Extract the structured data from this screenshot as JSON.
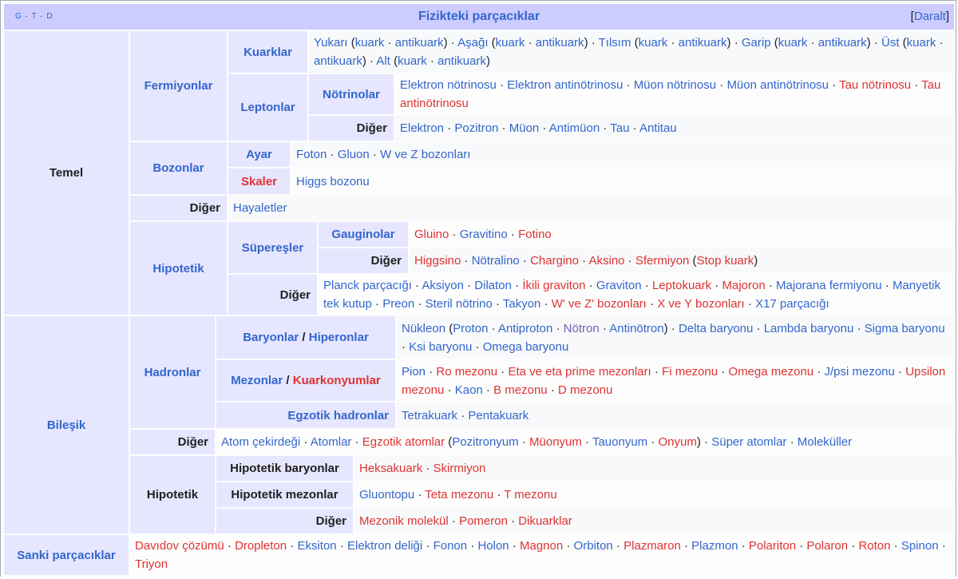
{
  "header": {
    "vtd": [
      "G",
      "T",
      "D"
    ],
    "title": "Fizikteki parçacıklar",
    "collapse_open": "[",
    "collapse_label": "Daralt",
    "collapse_close": "]"
  },
  "groups": {
    "temel": "Temel",
    "fermiyonlar": "Fermiyonlar",
    "kuarklar": "Kuarklar",
    "leptonlar": "Leptonlar",
    "notrinolar": "Nötrinolar",
    "diger_lepton": "Diğer",
    "bozonlar": "Bozonlar",
    "ayar": "Ayar",
    "skaler": "Skaler",
    "diger_temel": "Diğer",
    "hipotetik_temel": "Hipotetik",
    "superesler": "Süpereşler",
    "gauginolar": "Gauginolar",
    "diger_super": "Diğer",
    "diger_hip": "Diğer",
    "bilesik": "Bileşik",
    "hadronlar": "Hadronlar",
    "baryonlar": "Baryonlar",
    "slash": " / ",
    "hiperonlar": "Hiperonlar",
    "mezonlar": "Mezonlar",
    "kuarkonyumlar": "Kuarkonyumlar",
    "egzotik_hadronlar": "Egzotik hadronlar",
    "diger_bilesik": "Diğer",
    "hipotetik_bilesik": "Hipotetik",
    "hip_baryonlar": "Hipotetik baryonlar",
    "hip_mezonlar": "Hipotetik mezonlar",
    "diger_hip_bilesik": "Diğer",
    "sanki": "Sanki parçacıklar"
  },
  "lists": {
    "kuarklar": [
      {
        "t": "Yukarı",
        "c": "b"
      },
      {
        "t": " (",
        "c": "t"
      },
      {
        "t": "kuark",
        "c": "b"
      },
      {
        "t": " · ",
        "c": "t"
      },
      {
        "t": "antikuark",
        "c": "b"
      },
      {
        "t": ")",
        "c": "t"
      },
      {
        "t": " · ",
        "c": "t"
      },
      {
        "t": "Aşağı",
        "c": "b"
      },
      {
        "t": " (",
        "c": "t"
      },
      {
        "t": "kuark",
        "c": "b"
      },
      {
        "t": " · ",
        "c": "t"
      },
      {
        "t": "antikuark",
        "c": "b"
      },
      {
        "t": ")",
        "c": "t"
      },
      {
        "t": " · ",
        "c": "t"
      },
      {
        "t": "Tılsım",
        "c": "b"
      },
      {
        "t": " (",
        "c": "t"
      },
      {
        "t": "kuark",
        "c": "b"
      },
      {
        "t": " · ",
        "c": "t"
      },
      {
        "t": "antikuark",
        "c": "b"
      },
      {
        "t": ")",
        "c": "t"
      },
      {
        "t": " · ",
        "c": "t"
      },
      {
        "t": "Garip",
        "c": "b"
      },
      {
        "t": " (",
        "c": "t"
      },
      {
        "t": "kuark",
        "c": "b"
      },
      {
        "t": " · ",
        "c": "t"
      },
      {
        "t": "antikuark",
        "c": "b"
      },
      {
        "t": ")",
        "c": "t"
      },
      {
        "t": " · ",
        "c": "t"
      },
      {
        "t": "Üst",
        "c": "b"
      },
      {
        "t": " (",
        "c": "t"
      },
      {
        "t": "kuark",
        "c": "b"
      },
      {
        "t": " · ",
        "c": "t"
      },
      {
        "t": "antikuark",
        "c": "b"
      },
      {
        "t": ")",
        "c": "t"
      },
      {
        "t": " · ",
        "c": "t"
      },
      {
        "t": "Alt",
        "c": "b"
      },
      {
        "t": " (",
        "c": "t"
      },
      {
        "t": "kuark",
        "c": "b"
      },
      {
        "t": " · ",
        "c": "t"
      },
      {
        "t": "antikuark",
        "c": "b"
      },
      {
        "t": ")",
        "c": "t"
      }
    ],
    "notrinolar": [
      {
        "t": "Elektron nötrinosu",
        "c": "b"
      },
      {
        "t": " · ",
        "c": "t"
      },
      {
        "t": "Elektron antinötrinosu",
        "c": "b"
      },
      {
        "t": " · ",
        "c": "t"
      },
      {
        "t": "Müon nötrinosu",
        "c": "b"
      },
      {
        "t": " · ",
        "c": "t"
      },
      {
        "t": "Müon antinötrinosu",
        "c": "b"
      },
      {
        "t": " · ",
        "c": "t"
      },
      {
        "t": "Tau nötrinosu",
        "c": "r"
      },
      {
        "t": " · ",
        "c": "t"
      },
      {
        "t": "Tau antinötrinosu",
        "c": "r"
      }
    ],
    "diger_lepton": [
      {
        "t": "Elektron",
        "c": "b"
      },
      {
        "t": " · ",
        "c": "t"
      },
      {
        "t": "Pozitron",
        "c": "b"
      },
      {
        "t": " · ",
        "c": "t"
      },
      {
        "t": "Müon",
        "c": "b"
      },
      {
        "t": " · ",
        "c": "t"
      },
      {
        "t": "Antimüon",
        "c": "b"
      },
      {
        "t": " · ",
        "c": "t"
      },
      {
        "t": "Tau",
        "c": "b"
      },
      {
        "t": " · ",
        "c": "t"
      },
      {
        "t": "Antitau",
        "c": "b"
      }
    ],
    "ayar": [
      {
        "t": "Foton",
        "c": "b"
      },
      {
        "t": " · ",
        "c": "t"
      },
      {
        "t": "Gluon",
        "c": "b"
      },
      {
        "t": " · ",
        "c": "t"
      },
      {
        "t": "W ve Z bozonları",
        "c": "b"
      }
    ],
    "skaler": [
      {
        "t": "Higgs bozonu",
        "c": "b"
      }
    ],
    "diger_temel": [
      {
        "t": "Hayaletler",
        "c": "b"
      }
    ],
    "gauginolar": [
      {
        "t": "Gluino",
        "c": "r"
      },
      {
        "t": " · ",
        "c": "t"
      },
      {
        "t": "Gravitino",
        "c": "b"
      },
      {
        "t": " · ",
        "c": "t"
      },
      {
        "t": "Fotino",
        "c": "r"
      }
    ],
    "diger_super": [
      {
        "t": "Higgsino",
        "c": "r"
      },
      {
        "t": " · ",
        "c": "t"
      },
      {
        "t": "Nötralino",
        "c": "b"
      },
      {
        "t": " · ",
        "c": "t"
      },
      {
        "t": "Chargino",
        "c": "r"
      },
      {
        "t": " · ",
        "c": "t"
      },
      {
        "t": "Aksino",
        "c": "r"
      },
      {
        "t": " · ",
        "c": "t"
      },
      {
        "t": "Sfermiyon",
        "c": "r"
      },
      {
        "t": " (",
        "c": "t"
      },
      {
        "t": "Stop kuark",
        "c": "r"
      },
      {
        "t": ")",
        "c": "t"
      }
    ],
    "diger_hip": [
      {
        "t": "Planck parçacığı",
        "c": "b"
      },
      {
        "t": " · ",
        "c": "t"
      },
      {
        "t": "Aksiyon",
        "c": "b"
      },
      {
        "t": " · ",
        "c": "t"
      },
      {
        "t": "Dilaton",
        "c": "b"
      },
      {
        "t": " · ",
        "c": "t"
      },
      {
        "t": "İkili graviton",
        "c": "r"
      },
      {
        "t": " · ",
        "c": "t"
      },
      {
        "t": "Graviton",
        "c": "b"
      },
      {
        "t": " · ",
        "c": "t"
      },
      {
        "t": "Leptokuark",
        "c": "r"
      },
      {
        "t": " · ",
        "c": "t"
      },
      {
        "t": "Majoron",
        "c": "r"
      },
      {
        "t": " · ",
        "c": "t"
      },
      {
        "t": "Majorana fermiyonu",
        "c": "b"
      },
      {
        "t": " · ",
        "c": "t"
      },
      {
        "t": "Manyetik tek kutup",
        "c": "b"
      },
      {
        "t": " · ",
        "c": "t"
      },
      {
        "t": "Preon",
        "c": "b"
      },
      {
        "t": " · ",
        "c": "t"
      },
      {
        "t": "Steril nötrino",
        "c": "b"
      },
      {
        "t": " · ",
        "c": "t"
      },
      {
        "t": "Takyon",
        "c": "b"
      },
      {
        "t": " · ",
        "c": "t"
      },
      {
        "t": "W' ve Z' bozonları",
        "c": "r"
      },
      {
        "t": " · ",
        "c": "t"
      },
      {
        "t": "X ve Y bozonları",
        "c": "r"
      },
      {
        "t": " · ",
        "c": "t"
      },
      {
        "t": "X17 parçacığı",
        "c": "b"
      }
    ],
    "baryonlar": [
      {
        "t": "Nükleon",
        "c": "b"
      },
      {
        "t": " (",
        "c": "t"
      },
      {
        "t": "Proton",
        "c": "b"
      },
      {
        "t": " · ",
        "c": "t"
      },
      {
        "t": "Antiproton",
        "c": "b"
      },
      {
        "t": " · ",
        "c": "t"
      },
      {
        "t": "Nötron",
        "c": "v"
      },
      {
        "t": " · ",
        "c": "t"
      },
      {
        "t": "Antinötron",
        "c": "b"
      },
      {
        "t": ")",
        "c": "t"
      },
      {
        "t": " · ",
        "c": "t"
      },
      {
        "t": "Delta baryonu",
        "c": "b"
      },
      {
        "t": " · ",
        "c": "t"
      },
      {
        "t": "Lambda baryonu",
        "c": "b"
      },
      {
        "t": " · ",
        "c": "t"
      },
      {
        "t": "Sigma baryonu",
        "c": "b"
      },
      {
        "t": " · ",
        "c": "t"
      },
      {
        "t": "Ksi baryonu",
        "c": "b"
      },
      {
        "t": " · ",
        "c": "t"
      },
      {
        "t": "Omega baryonu",
        "c": "b"
      }
    ],
    "mezonlar": [
      {
        "t": "Pion",
        "c": "b"
      },
      {
        "t": " · ",
        "c": "t"
      },
      {
        "t": "Ro mezonu",
        "c": "r"
      },
      {
        "t": " · ",
        "c": "t"
      },
      {
        "t": "Eta ve eta prime mezonları",
        "c": "r"
      },
      {
        "t": " · ",
        "c": "t"
      },
      {
        "t": "Fi mezonu",
        "c": "r"
      },
      {
        "t": " · ",
        "c": "t"
      },
      {
        "t": "Omega mezonu",
        "c": "r"
      },
      {
        "t": " · ",
        "c": "t"
      },
      {
        "t": "J/psi mezonu",
        "c": "b"
      },
      {
        "t": " · ",
        "c": "t"
      },
      {
        "t": "Upsilon mezonu",
        "c": "r"
      },
      {
        "t": " · ",
        "c": "t"
      },
      {
        "t": "Kaon",
        "c": "b"
      },
      {
        "t": " · ",
        "c": "t"
      },
      {
        "t": "B mezonu",
        "c": "r"
      },
      {
        "t": " · ",
        "c": "t"
      },
      {
        "t": "D mezonu",
        "c": "r"
      }
    ],
    "egzotik": [
      {
        "t": "Tetrakuark",
        "c": "b"
      },
      {
        "t": " · ",
        "c": "t"
      },
      {
        "t": "Pentakuark",
        "c": "b"
      }
    ],
    "diger_bilesik": [
      {
        "t": "Atom çekirdeği",
        "c": "b"
      },
      {
        "t": " · ",
        "c": "t"
      },
      {
        "t": "Atomlar",
        "c": "b"
      },
      {
        "t": " · ",
        "c": "t"
      },
      {
        "t": "Egzotik atomlar",
        "c": "r"
      },
      {
        "t": " (",
        "c": "t"
      },
      {
        "t": "Pozitronyum",
        "c": "b"
      },
      {
        "t": " · ",
        "c": "t"
      },
      {
        "t": "Müonyum",
        "c": "r"
      },
      {
        "t": " · ",
        "c": "t"
      },
      {
        "t": "Tauonyum",
        "c": "b"
      },
      {
        "t": " · ",
        "c": "t"
      },
      {
        "t": "Onyum",
        "c": "r"
      },
      {
        "t": ")",
        "c": "t"
      },
      {
        "t": " · ",
        "c": "t"
      },
      {
        "t": "Süper atomlar",
        "c": "b"
      },
      {
        "t": " · ",
        "c": "t"
      },
      {
        "t": "Moleküller",
        "c": "b"
      }
    ],
    "hip_baryonlar": [
      {
        "t": "Heksakuark",
        "c": "r"
      },
      {
        "t": " · ",
        "c": "t"
      },
      {
        "t": "Skirmiyon",
        "c": "r"
      }
    ],
    "hip_mezonlar": [
      {
        "t": "Gluontopu",
        "c": "b"
      },
      {
        "t": " · ",
        "c": "t"
      },
      {
        "t": "Teta mezonu",
        "c": "r"
      },
      {
        "t": " · ",
        "c": "t"
      },
      {
        "t": "T mezonu",
        "c": "r"
      }
    ],
    "diger_hip_bilesik": [
      {
        "t": "Mezonik molekül",
        "c": "r"
      },
      {
        "t": " · ",
        "c": "t"
      },
      {
        "t": "Pomeron",
        "c": "r"
      },
      {
        "t": " · ",
        "c": "t"
      },
      {
        "t": "Dikuarklar",
        "c": "r"
      }
    ],
    "sanki": [
      {
        "t": "Davıdov çözümü",
        "c": "r"
      },
      {
        "t": " · ",
        "c": "t"
      },
      {
        "t": "Dropleton",
        "c": "r"
      },
      {
        "t": " · ",
        "c": "t"
      },
      {
        "t": "Eksiton",
        "c": "b"
      },
      {
        "t": " · ",
        "c": "t"
      },
      {
        "t": "Elektron deliği",
        "c": "b"
      },
      {
        "t": " · ",
        "c": "t"
      },
      {
        "t": "Fonon",
        "c": "b"
      },
      {
        "t": " · ",
        "c": "t"
      },
      {
        "t": "Holon",
        "c": "b"
      },
      {
        "t": " · ",
        "c": "t"
      },
      {
        "t": "Magnon",
        "c": "r"
      },
      {
        "t": " · ",
        "c": "t"
      },
      {
        "t": "Orbiton",
        "c": "b"
      },
      {
        "t": " · ",
        "c": "t"
      },
      {
        "t": "Plazmaron",
        "c": "r"
      },
      {
        "t": " · ",
        "c": "t"
      },
      {
        "t": "Plazmon",
        "c": "b"
      },
      {
        "t": " · ",
        "c": "t"
      },
      {
        "t": "Polariton",
        "c": "r"
      },
      {
        "t": " · ",
        "c": "t"
      },
      {
        "t": "Polaron",
        "c": "r"
      },
      {
        "t": " · ",
        "c": "t"
      },
      {
        "t": "Roton",
        "c": "r"
      },
      {
        "t": " · ",
        "c": "t"
      },
      {
        "t": "Spinon",
        "c": "b"
      },
      {
        "t": " · ",
        "c": "t"
      },
      {
        "t": "Triyon",
        "c": "r"
      }
    ]
  },
  "colors": {
    "link": "#3366cc",
    "redlink": "#dd3333",
    "visited": "#795cb2",
    "group_bg": "#e6e6ff",
    "title_bg": "#ccccff",
    "list_bg": "#f8f9fa"
  }
}
